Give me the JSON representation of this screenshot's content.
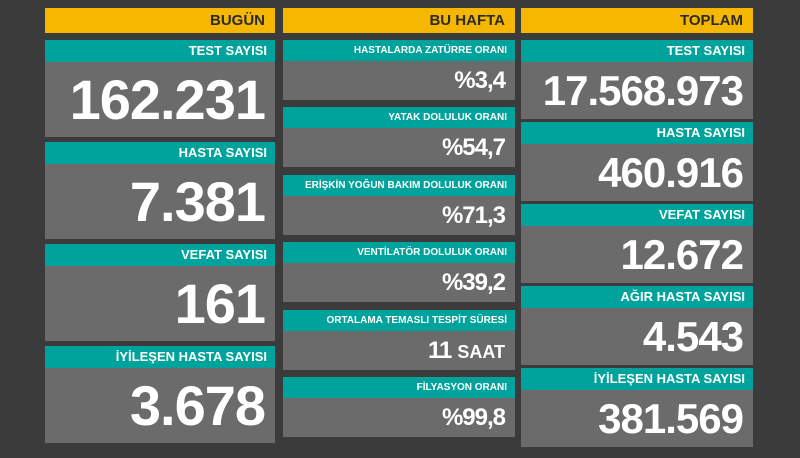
{
  "columns": [
    {
      "title": "BUGÜN",
      "cards": [
        {
          "label": "TEST SAYISI",
          "value": "162.231"
        },
        {
          "label": "HASTA SAYISI",
          "value": "7.381"
        },
        {
          "label": "VEFAT SAYISI",
          "value": "161"
        },
        {
          "label": "İYİLEŞEN HASTA SAYISI",
          "value": "3.678"
        }
      ]
    },
    {
      "title": "BU HAFTA",
      "cards": [
        {
          "label": "HASTALARDA ZATÜRRE ORANI",
          "value": "%3,4"
        },
        {
          "label": "YATAK DOLULUK ORANI",
          "value": "%54,7"
        },
        {
          "label": "ERİŞKİN YOĞUN BAKIM DOLULUK ORANI",
          "value": "%71,3"
        },
        {
          "label": "VENTİLATÖR DOLULUK ORANI",
          "value": "%39,2"
        },
        {
          "label": "ORTALAMA TEMASLI TESPİT SÜRESİ",
          "value": "11",
          "unit": "SAAT"
        },
        {
          "label": "FİLYASYON ORANI",
          "value": "%99,8"
        }
      ]
    },
    {
      "title": "TOPLAM",
      "cards": [
        {
          "label": "TEST SAYISI",
          "value": "17.568.973"
        },
        {
          "label": "HASTA SAYISI",
          "value": "460.916"
        },
        {
          "label": "VEFAT SAYISI",
          "value": "12.672"
        },
        {
          "label": "AĞIR HASTA SAYISI",
          "value": "4.543"
        },
        {
          "label": "İYİLEŞEN HASTA SAYISI",
          "value": "381.569"
        }
      ]
    }
  ]
}
